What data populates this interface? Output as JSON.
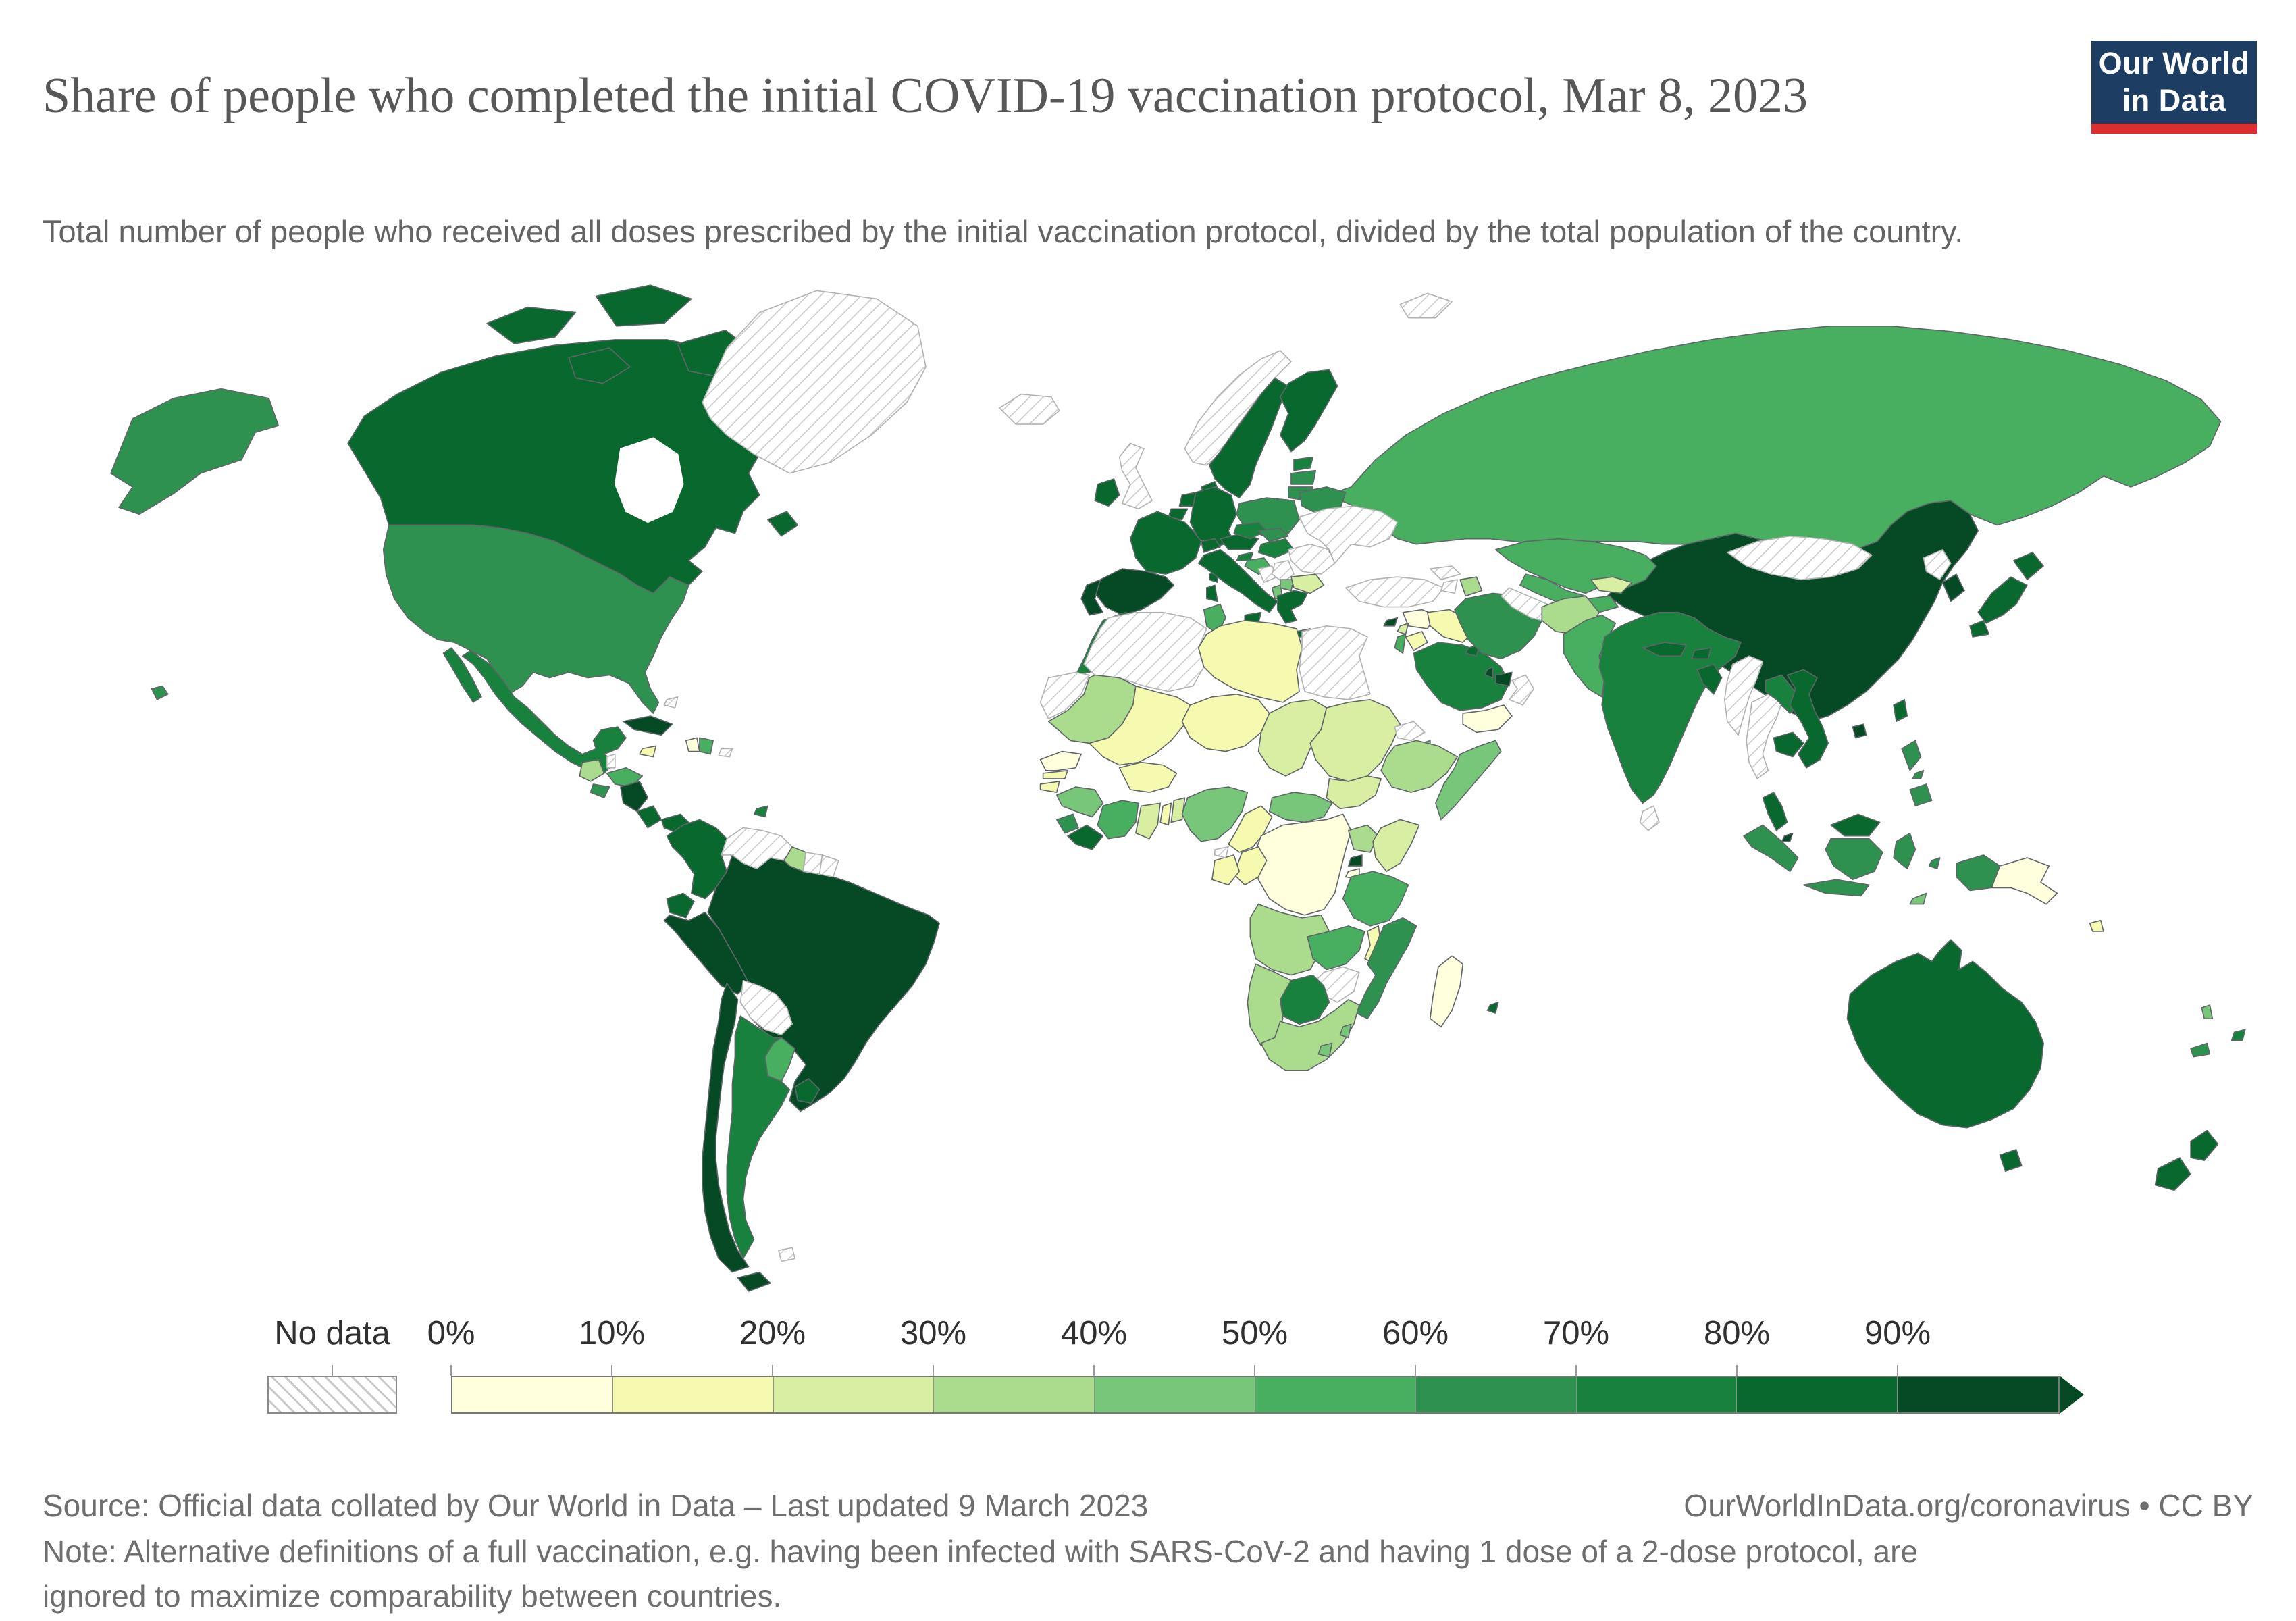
{
  "header": {
    "title": "Share of people who completed the initial COVID-19 vaccination protocol, Mar 8, 2023",
    "subtitle": "Total number of people who received all doses prescribed by the initial vaccination protocol, divided by the total population of the country.",
    "logo_line1": "Our World",
    "logo_line2": "in Data",
    "logo_bg_color": "#1d3d63",
    "logo_accent_color": "#dc2e2e"
  },
  "footer": {
    "source": "Source: Official data collated by Our World in Data – Last updated 9 March 2023",
    "link": "OurWorldInData.org/coronavirus • CC BY",
    "note": "Note: Alternative definitions of a full vaccination, e.g. having been infected with SARS-CoV-2 and having 1 dose of a 2-dose protocol, are ignored to maximize comparability between countries."
  },
  "legend": {
    "no_data_label": "No data"
  },
  "chart_data": {
    "type": "choropleth_map",
    "title": "Share of people who completed the initial COVID-19 vaccination protocol",
    "date": "Mar 8, 2023",
    "unit": "%",
    "legend_position": "bottom",
    "palette": {
      "0-10%": "#ffffdd",
      "10-20%": "#f6fab1",
      "20-30%": "#d8efa3",
      "30-40%": "#abdb8d",
      "40-50%": "#78c679",
      "50-60%": "#48ae60",
      "60-70%": "#2f9150",
      "70-80%": "#17813d",
      "80-90%": "#09682e",
      "90-100%": "#054a24"
    },
    "buckets": [
      {
        "range": "0-10%",
        "tick": "0%"
      },
      {
        "range": "10-20%",
        "tick": "10%"
      },
      {
        "range": "20-30%",
        "tick": "20%"
      },
      {
        "range": "30-40%",
        "tick": "30%"
      },
      {
        "range": "40-50%",
        "tick": "40%"
      },
      {
        "range": "50-60%",
        "tick": "50%"
      },
      {
        "range": "60-70%",
        "tick": "60%"
      },
      {
        "range": "70-80%",
        "tick": "70%"
      },
      {
        "range": "80-90%",
        "tick": "80%"
      },
      {
        "range": "90-100%",
        "tick": "90%"
      }
    ],
    "countries": {
      "Greenland": "no_data",
      "Iceland": "no_data",
      "United Kingdom": "no_data",
      "Norway": "no_data",
      "Svalbard": "no_data",
      "Ukraine": "no_data",
      "Romania": "no_data",
      "Serbia": "no_data",
      "Bosnia and Herzegovina": "no_data",
      "Turkey": "no_data",
      "Georgia": "no_data",
      "Armenia": "no_data",
      "Turkmenistan": "no_data",
      "Mongolia": "no_data",
      "North Korea": "no_data",
      "Myanmar": "no_data",
      "Thailand": "no_data",
      "Sri Lanka": "no_data",
      "Oman": "no_data",
      "Algeria": "no_data",
      "Western Sahara": "no_data",
      "Eritrea": "no_data",
      "Equatorial Guinea": "no_data",
      "Zimbabwe": "no_data",
      "Venezuela": "no_data",
      "Suriname": "no_data",
      "French Guiana": "no_data",
      "Bolivia": "no_data",
      "Bahamas": "no_data",
      "Belize": "no_data",
      "Falkland Islands": "no_data",
      "Haiti": "0-10%",
      "Senegal": "0-10%",
      "Democratic Republic of Congo": "0-10%",
      "Madagascar": "0-10%",
      "Yemen": "0-10%",
      "Syria": "0-10%",
      "Papua New Guinea": "0-10%",
      "Burundi": "0-10%",
      "Jamaica": "10-20%",
      "Libya": "10-20%",
      "Mali": "10-20%",
      "Niger": "10-20%",
      "Burkina Faso": "10-20%",
      "Cameroon": "10-20%",
      "Gabon": "10-20%",
      "Congo": "10-20%",
      "Malawi": "10-20%",
      "Togo": "10-20%",
      "Gambia": "10-20%",
      "Guinea-Bissau": "10-20%",
      "Iraq": "10-20%",
      "Jordan": "10-20%",
      "Solomon Islands": "10-20%",
      "Bulgaria": "20-30%",
      "Moldova": "20-30%",
      "Ghana": "20-30%",
      "Benin": "20-30%",
      "Chad": "20-30%",
      "Sudan": "20-30%",
      "South Sudan": "20-30%",
      "Kenya": "20-30%",
      "Kyrgyzstan": "20-30%",
      "Lebanon": "20-30%",
      "Mauritania": "30-40%",
      "Ethiopia": "30-40%",
      "Uganda": "30-40%",
      "Angola": "30-40%",
      "Namibia": "30-40%",
      "South Africa": "30-40%",
      "Guatemala": "30-40%",
      "Guyana": "30-40%",
      "Afghanistan": "30-40%",
      "Azerbaijan": "30-40%",
      "Guinea": "40-50%",
      "Nigeria": "40-50%",
      "Central African Republic": "40-50%",
      "Somalia": "40-50%",
      "Albania": "40-50%",
      "North Macedonia": "40-50%",
      "Vanuatu": "40-50%",
      "Lesotho": "40-50%",
      "Eswatini": "40-50%",
      "Djibouti": "40-50%",
      "Timor-Leste": "40-50%",
      "Honduras": "50-60%",
      "Dominican Republic": "50-60%",
      "Cote d'Ivoire": "50-60%",
      "Tunisia": "50-60%",
      "Tanzania": "50-60%",
      "Zambia": "50-60%",
      "Russia": "50-60%",
      "Kazakhstan": "50-60%",
      "Uzbekistan": "50-60%",
      "Tajikistan": "50-60%",
      "Israel": "50-60%",
      "Croatia": "50-60%",
      "Pakistan": "50-60%",
      "Paraguay": "50-60%",
      "United States": "60-70%",
      "El Salvador": "60-70%",
      "Indonesia": "60-70%",
      "Philippines": "60-70%",
      "Iran": "60-70%",
      "Sierra Leone": "60-70%",
      "Mozambique": "60-70%",
      "New Caledonia": "60-70%",
      "Belarus": "60-70%",
      "Poland": "60-70%",
      "Slovakia": "60-70%",
      "Lithuania": "60-70%",
      "Latvia": "60-70%",
      "Mexico": "70-80%",
      "Argentina": "70-80%",
      "Morocco": "70-80%",
      "Saudi Arabia": "70-80%",
      "India": "70-80%",
      "Laos": "70-80%",
      "Botswana": "70-80%",
      "Hungary": "70-80%",
      "Czechia": "70-80%",
      "Estonia": "70-80%",
      "Slovenia": "70-80%",
      "Fiji": "70-80%",
      "Trinidad and Tobago": "70-80%",
      "Canada": "80-90%",
      "Japan": "80-90%",
      "Australia": "80-90%",
      "New Zealand": "80-90%",
      "Sweden": "80-90%",
      "Finland": "80-90%",
      "Denmark": "80-90%",
      "Ireland": "80-90%",
      "Austria": "80-90%",
      "Greece": "80-90%",
      "Ecuador": "80-90%",
      "Uruguay": "80-90%",
      "Nepal": "80-90%",
      "Bhutan": "80-90%",
      "Bangladesh": "80-90%",
      "Vietnam": "80-90%",
      "Cambodia": "80-90%",
      "Malaysia": "80-90%",
      "Taiwan": "80-90%",
      "Kuwait": "80-90%",
      "Mauritius": "80-90%",
      "Liberia": "80-90%",
      "Colombia": "80-90%",
      "Costa Rica": "80-90%",
      "Panama": "80-90%",
      "France": "80-90%",
      "Germany": "80-90%",
      "Italy": "80-90%",
      "Netherlands": "80-90%",
      "Belgium": "80-90%",
      "Switzerland": "80-90%",
      "China": "90-100%",
      "Chile": "90-100%",
      "Peru": "90-100%",
      "Brazil": "90-100%",
      "Cuba": "90-100%",
      "Nicaragua": "90-100%",
      "South Korea": "90-100%",
      "United Arab Emirates": "90-100%",
      "Qatar": "90-100%",
      "Cyprus": "90-100%",
      "Rwanda": "90-100%",
      "Spain": "90-100%",
      "Portugal": "90-100%",
      "Singapore": "90-100%"
    }
  }
}
